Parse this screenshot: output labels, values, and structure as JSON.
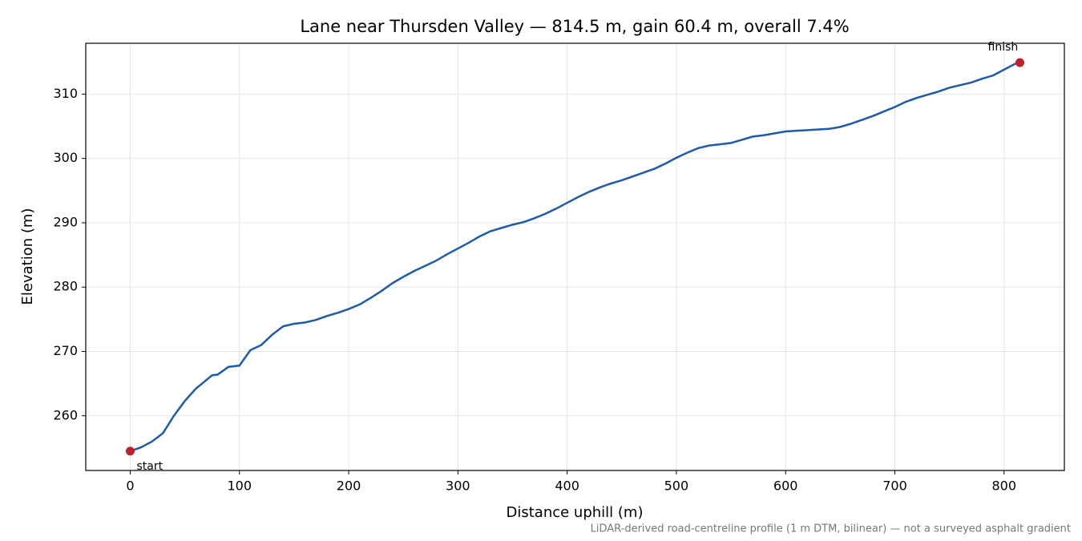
{
  "chart_data": {
    "type": "line",
    "title": "Lane near Thursden Valley — 814.5 m, gain 60.4 m, overall 7.4%",
    "x_label": "Distance uphill (m)",
    "y_label": "Elevation (m)",
    "footnote": "LiDAR-derived road-centreline profile (1 m DTM, bilinear) — not a surveyed asphalt gradient",
    "xlim": [
      -40.7,
      855.2
    ],
    "ylim": [
      251.5,
      317.9
    ],
    "xticks": [
      0,
      100,
      200,
      300,
      400,
      500,
      600,
      700,
      800
    ],
    "yticks": [
      260,
      270,
      280,
      290,
      300,
      310
    ],
    "grid": true,
    "series": [
      {
        "color": "#1f5aa8",
        "x": [
          0,
          10,
          20,
          30,
          40,
          50,
          60,
          70,
          75,
          80,
          90,
          100,
          105,
          110,
          120,
          130,
          140,
          150,
          160,
          170,
          180,
          190,
          200,
          210,
          220,
          230,
          240,
          250,
          260,
          270,
          280,
          290,
          300,
          310,
          320,
          330,
          340,
          350,
          360,
          370,
          380,
          390,
          400,
          410,
          420,
          430,
          440,
          450,
          460,
          470,
          480,
          490,
          500,
          510,
          520,
          530,
          540,
          550,
          560,
          570,
          580,
          590,
          600,
          610,
          620,
          630,
          640,
          650,
          660,
          670,
          680,
          690,
          700,
          710,
          720,
          730,
          740,
          750,
          760,
          770,
          780,
          790,
          800,
          810,
          814.5
        ],
        "values": [
          254.5,
          255.1,
          256.0,
          257.3,
          260.0,
          262.3,
          264.2,
          265.6,
          266.3,
          266.4,
          267.6,
          267.8,
          269.0,
          270.2,
          271.0,
          272.6,
          273.9,
          274.3,
          274.5,
          274.9,
          275.5,
          276.0,
          276.6,
          277.3,
          278.3,
          279.4,
          280.6,
          281.6,
          282.5,
          283.3,
          284.1,
          285.1,
          286.0,
          286.9,
          287.9,
          288.7,
          289.2,
          289.7,
          290.1,
          290.7,
          291.4,
          292.2,
          293.1,
          294.0,
          294.8,
          295.5,
          296.1,
          296.6,
          297.2,
          297.8,
          298.4,
          299.2,
          300.1,
          300.9,
          301.6,
          302.0,
          302.2,
          302.4,
          302.9,
          303.4,
          303.6,
          303.9,
          304.2,
          304.3,
          304.4,
          304.5,
          304.6,
          304.9,
          305.4,
          306.0,
          306.6,
          307.3,
          308.0,
          308.8,
          309.4,
          309.9,
          310.4,
          311.0,
          311.4,
          311.8,
          312.4,
          312.9,
          313.8,
          314.7,
          314.9
        ]
      }
    ],
    "markers": {
      "color": "#c0202a",
      "points": [
        {
          "label": "start",
          "x": 0,
          "y": 254.5
        },
        {
          "label": "finish",
          "x": 814.5,
          "y": 314.9
        }
      ]
    }
  }
}
